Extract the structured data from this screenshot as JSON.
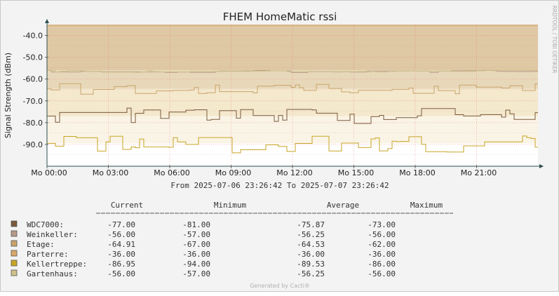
{
  "chart_data": {
    "type": "area",
    "title": "FHEM HomeMatic rssi",
    "ylabel": "Signal Strength (dBm)",
    "vertical_watermark": "RRDTOOL / TOBI OETIKER",
    "x_ticks": [
      "Mo 00:00",
      "Mo 03:00",
      "Mo 06:00",
      "Mo 09:00",
      "Mo 12:00",
      "Mo 15:00",
      "Mo 18:00",
      "Mo 21:00"
    ],
    "y_ticks": [
      "-40.0",
      "-50.0",
      "-60.0",
      "-70.0",
      "-80.0",
      "-90.0"
    ],
    "ylim": [
      -100,
      -35
    ],
    "range_text": "From 2025-07-06 23:26:42 To 2025-07-07 23:26:42",
    "legend_headers": [
      "Current",
      "Minimum",
      "Average",
      "Maximum"
    ],
    "series": [
      {
        "name": "WDC7000:",
        "color": "#7a5a3c",
        "current": "-77.00",
        "minimum": "-81.00",
        "average": "-75.87",
        "maximum": "-73.00",
        "value": -77
      },
      {
        "name": "Weinkeller:",
        "color": "#b69a88",
        "current": "-56.00",
        "minimum": "-57.00",
        "average": "-56.25",
        "maximum": "-56.00",
        "value": -56
      },
      {
        "name": "Etage:",
        "color": "#c9a46b",
        "current": "-64.91",
        "minimum": "-67.00",
        "average": "-64.53",
        "maximum": "-62.00",
        "value": -64.5
      },
      {
        "name": "Parterre:",
        "color": "#d9a86a",
        "current": "-36.00",
        "minimum": "-36.00",
        "average": "-36.00",
        "maximum": "-36.00",
        "value": -36
      },
      {
        "name": "Kellertreppe:",
        "color": "#c8a526",
        "current": "-86.95",
        "minimum": "-94.00",
        "average": "-89.53",
        "maximum": "-86.00",
        "value": -89.5
      },
      {
        "name": "Gartenhaus:",
        "color": "#cfc08a",
        "current": "-56.00",
        "minimum": "-57.00",
        "average": "-56.25",
        "maximum": "-56.00",
        "value": -56
      }
    ],
    "grid": true,
    "legend_position": "bottom"
  },
  "footer": "Generated by Cacti®"
}
